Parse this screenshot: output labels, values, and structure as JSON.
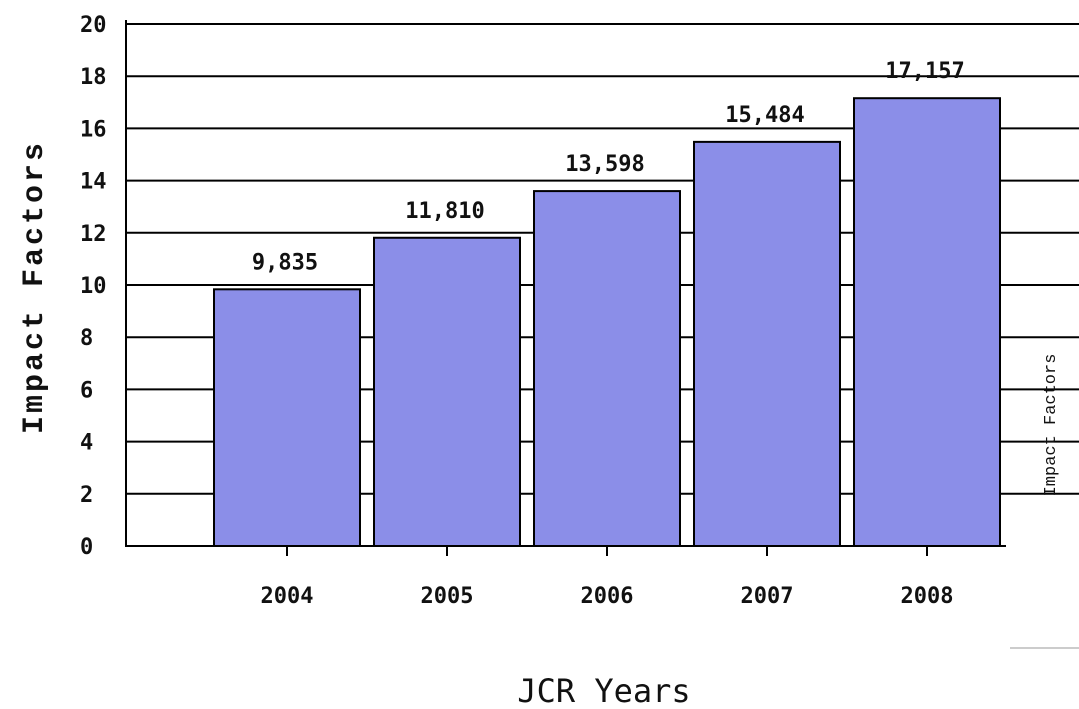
{
  "chart_data": {
    "type": "bar",
    "categories": [
      "2004",
      "2005",
      "2006",
      "2007",
      "2008"
    ],
    "values": [
      9.835,
      11.81,
      13.598,
      15.484,
      17.157
    ],
    "data_labels": [
      "9,835",
      "11,810",
      "13,598",
      "15,484",
      "17,157"
    ],
    "title": "",
    "xlabel": "JCR Years",
    "ylabel": "Impact Factors",
    "ylabel_secondary": "Impact Factors",
    "ylim": [
      0,
      20
    ],
    "yticks": [
      "0",
      "2",
      "4",
      "6",
      "8",
      "10",
      "12",
      "14",
      "16",
      "18",
      "20"
    ],
    "grid": true,
    "legend": "none",
    "colors": {
      "bar": "#8b8ee8",
      "bar_edge": "#000000",
      "grid": "#000000"
    }
  }
}
